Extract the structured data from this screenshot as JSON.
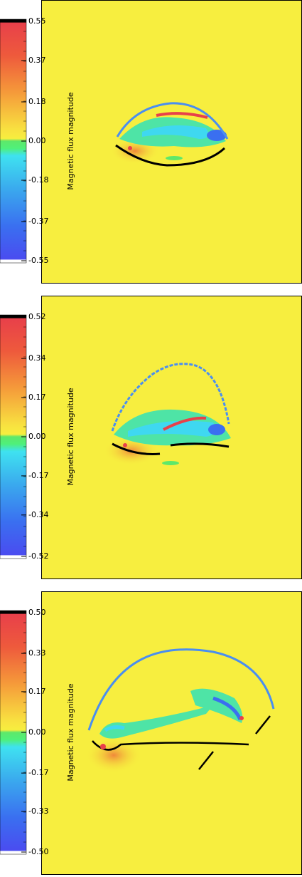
{
  "chart_data": [
    {
      "type": "colorbar",
      "label": "Magnetic flux magnitude",
      "ylim": [
        -0.55,
        0.55
      ],
      "yticks": [
        0.55,
        0.37,
        0.18,
        {
          "value": 0,
          "label": "0.00"
        },
        -0.18,
        -0.37,
        -0.55
      ]
    },
    {
      "type": "colorbar",
      "label": "Magnetic flux magnitude",
      "ylim": [
        -0.52,
        0.52
      ],
      "yticks": [
        0.52,
        0.34,
        0.17,
        {
          "value": 0,
          "label": "0.00"
        },
        -0.17,
        -0.34,
        -0.52
      ]
    },
    {
      "type": "colorbar",
      "label": "Magnetic flux magnitude",
      "ylim": [
        -0.5,
        0.5
      ],
      "yticks": [
        {
          "value": 0.5,
          "label": "0.50"
        },
        0.33,
        0.17,
        {
          "value": 0,
          "label": "0.00"
        },
        -0.17,
        -0.33,
        {
          "value": -0.5,
          "label": "-0.50"
        }
      ]
    }
  ]
}
